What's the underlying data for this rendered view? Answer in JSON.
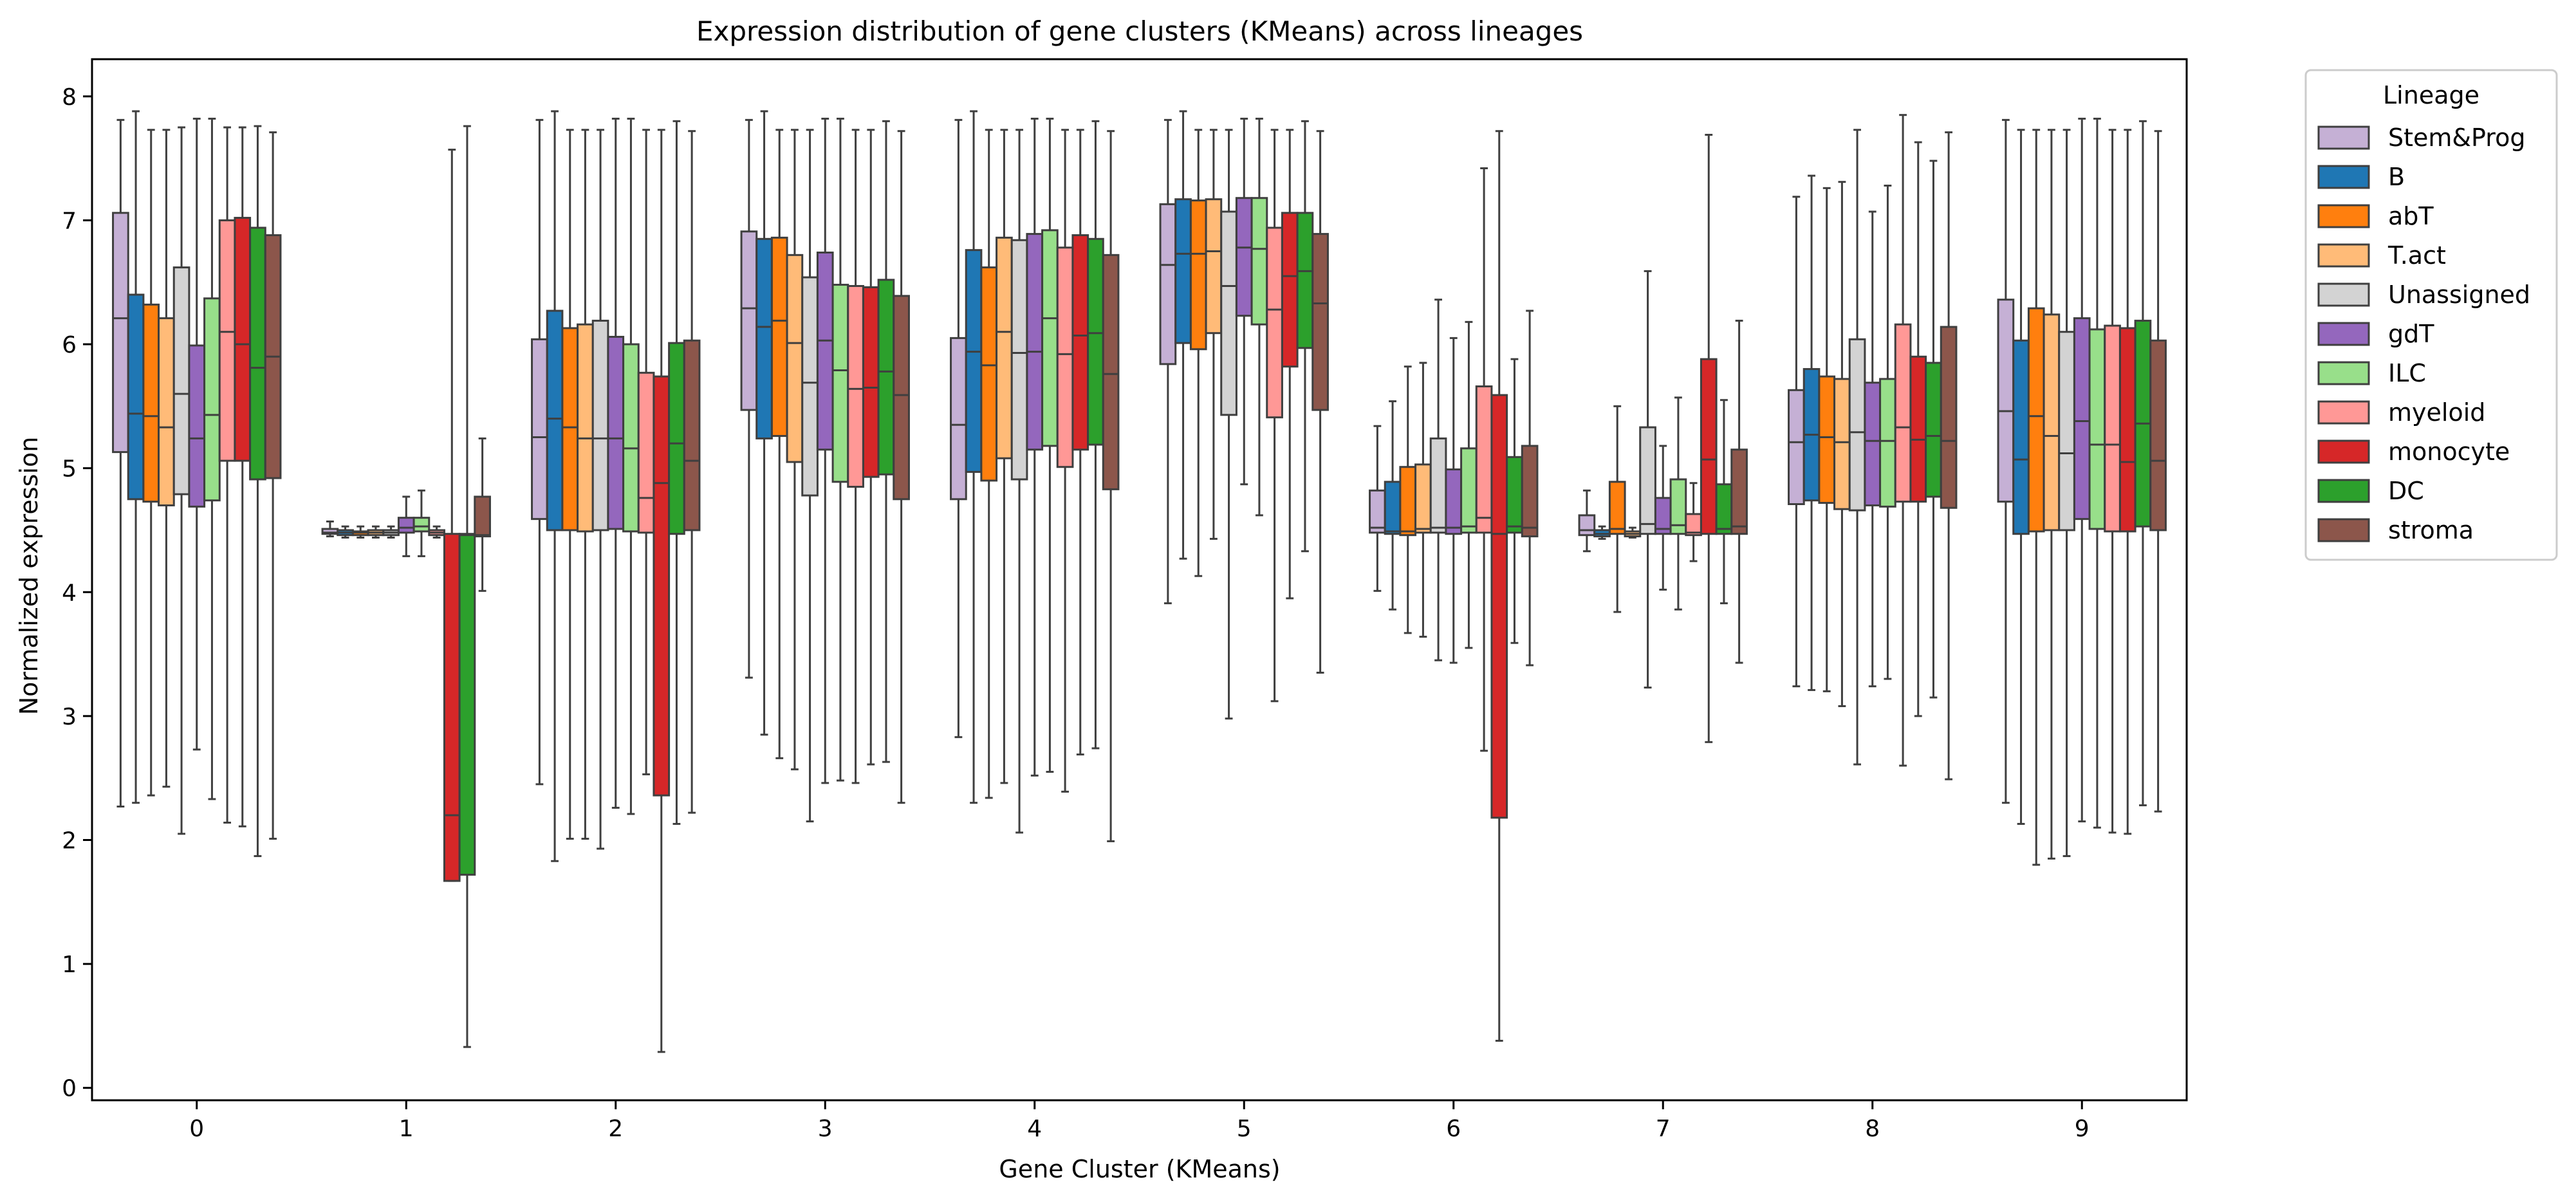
{
  "chart_data": {
    "type": "box",
    "title": "Expression distribution of gene clusters (KMeans) across lineages",
    "xlabel": "Gene Cluster (KMeans)",
    "ylabel": "Normalized expression",
    "ylim": [
      -0.1,
      8.3
    ],
    "yticks": [
      0,
      1,
      2,
      3,
      4,
      5,
      6,
      7,
      8
    ],
    "categories": [
      "0",
      "1",
      "2",
      "3",
      "4",
      "5",
      "6",
      "7",
      "8",
      "9"
    ],
    "grid": false,
    "legend": {
      "title": "Lineage",
      "placement": "outside-upper-right"
    },
    "series": [
      {
        "name": "Stem&Prog",
        "color": "#c5b0d5",
        "boxes": [
          {
            "lo": 2.27,
            "q1": 5.13,
            "med": 6.21,
            "q3": 7.06,
            "hi": 7.81
          },
          {
            "lo": 4.45,
            "q1": 4.47,
            "med": 4.48,
            "q3": 4.51,
            "hi": 4.57
          },
          {
            "lo": 2.45,
            "q1": 4.59,
            "med": 5.25,
            "q3": 6.04,
            "hi": 7.81
          },
          {
            "lo": 3.31,
            "q1": 5.47,
            "med": 6.29,
            "q3": 6.91,
            "hi": 7.81
          },
          {
            "lo": 2.83,
            "q1": 4.75,
            "med": 5.35,
            "q3": 6.05,
            "hi": 7.81
          },
          {
            "lo": 3.91,
            "q1": 5.84,
            "med": 6.64,
            "q3": 7.13,
            "hi": 7.81
          },
          {
            "lo": 4.01,
            "q1": 4.48,
            "med": 4.52,
            "q3": 4.82,
            "hi": 5.34
          },
          {
            "lo": 4.33,
            "q1": 4.46,
            "med": 4.5,
            "q3": 4.62,
            "hi": 4.82
          },
          {
            "lo": 3.24,
            "q1": 4.71,
            "med": 5.21,
            "q3": 5.63,
            "hi": 7.19
          },
          {
            "lo": 2.3,
            "q1": 4.73,
            "med": 5.46,
            "q3": 6.36,
            "hi": 7.81
          }
        ]
      },
      {
        "name": "B",
        "color": "#1f77b4",
        "boxes": [
          {
            "lo": 2.3,
            "q1": 4.75,
            "med": 5.44,
            "q3": 6.4,
            "hi": 7.88
          },
          {
            "lo": 4.44,
            "q1": 4.46,
            "med": 4.48,
            "q3": 4.5,
            "hi": 4.53
          },
          {
            "lo": 1.83,
            "q1": 4.5,
            "med": 5.4,
            "q3": 6.27,
            "hi": 7.88
          },
          {
            "lo": 2.85,
            "q1": 5.24,
            "med": 6.14,
            "q3": 6.85,
            "hi": 7.88
          },
          {
            "lo": 2.3,
            "q1": 4.97,
            "med": 5.94,
            "q3": 6.76,
            "hi": 7.88
          },
          {
            "lo": 4.27,
            "q1": 6.01,
            "med": 6.73,
            "q3": 7.17,
            "hi": 7.88
          },
          {
            "lo": 3.86,
            "q1": 4.47,
            "med": 4.49,
            "q3": 4.89,
            "hi": 5.54
          },
          {
            "lo": 4.43,
            "q1": 4.45,
            "med": 4.47,
            "q3": 4.5,
            "hi": 4.53
          },
          {
            "lo": 3.21,
            "q1": 4.74,
            "med": 5.27,
            "q3": 5.8,
            "hi": 7.36
          },
          {
            "lo": 2.13,
            "q1": 4.47,
            "med": 5.07,
            "q3": 6.03,
            "hi": 7.73
          }
        ]
      },
      {
        "name": "abT",
        "color": "#ff7f0e",
        "boxes": [
          {
            "lo": 2.36,
            "q1": 4.73,
            "med": 5.42,
            "q3": 6.32,
            "hi": 7.73
          },
          {
            "lo": 4.44,
            "q1": 4.46,
            "med": 4.48,
            "q3": 4.49,
            "hi": 4.53
          },
          {
            "lo": 2.01,
            "q1": 4.5,
            "med": 5.33,
            "q3": 6.13,
            "hi": 7.73
          },
          {
            "lo": 2.66,
            "q1": 5.26,
            "med": 6.19,
            "q3": 6.86,
            "hi": 7.73
          },
          {
            "lo": 2.34,
            "q1": 4.9,
            "med": 5.83,
            "q3": 6.62,
            "hi": 7.73
          },
          {
            "lo": 4.13,
            "q1": 5.96,
            "med": 6.73,
            "q3": 7.16,
            "hi": 7.73
          },
          {
            "lo": 3.67,
            "q1": 4.46,
            "med": 4.49,
            "q3": 5.01,
            "hi": 5.82
          },
          {
            "lo": 3.84,
            "q1": 4.47,
            "med": 4.51,
            "q3": 4.89,
            "hi": 5.5
          },
          {
            "lo": 3.2,
            "q1": 4.72,
            "med": 5.25,
            "q3": 5.74,
            "hi": 7.26
          },
          {
            "lo": 1.8,
            "q1": 4.49,
            "med": 5.42,
            "q3": 6.29,
            "hi": 7.73
          }
        ]
      },
      {
        "name": "T.act",
        "color": "#ffbb78",
        "boxes": [
          {
            "lo": 2.43,
            "q1": 4.7,
            "med": 5.33,
            "q3": 6.21,
            "hi": 7.73
          },
          {
            "lo": 4.44,
            "q1": 4.46,
            "med": 4.48,
            "q3": 4.5,
            "hi": 4.53
          },
          {
            "lo": 2.01,
            "q1": 4.49,
            "med": 5.24,
            "q3": 6.16,
            "hi": 7.73
          },
          {
            "lo": 2.57,
            "q1": 5.05,
            "med": 6.01,
            "q3": 6.72,
            "hi": 7.73
          },
          {
            "lo": 2.46,
            "q1": 5.08,
            "med": 6.1,
            "q3": 6.86,
            "hi": 7.73
          },
          {
            "lo": 4.43,
            "q1": 6.09,
            "med": 6.75,
            "q3": 7.17,
            "hi": 7.73
          },
          {
            "lo": 3.64,
            "q1": 4.48,
            "med": 4.51,
            "q3": 5.03,
            "hi": 5.85
          },
          {
            "lo": 4.44,
            "q1": 4.45,
            "med": 4.47,
            "q3": 4.49,
            "hi": 4.52
          },
          {
            "lo": 3.08,
            "q1": 4.67,
            "med": 5.21,
            "q3": 5.72,
            "hi": 7.31
          },
          {
            "lo": 1.85,
            "q1": 4.5,
            "med": 5.26,
            "q3": 6.24,
            "hi": 7.73
          }
        ]
      },
      {
        "name": "Unassigned",
        "color": "#d3d3d3",
        "boxes": [
          {
            "lo": 2.05,
            "q1": 4.79,
            "med": 5.6,
            "q3": 6.62,
            "hi": 7.75
          },
          {
            "lo": 4.44,
            "q1": 4.46,
            "med": 4.48,
            "q3": 4.5,
            "hi": 4.53
          },
          {
            "lo": 1.93,
            "q1": 4.5,
            "med": 5.24,
            "q3": 6.19,
            "hi": 7.73
          },
          {
            "lo": 2.15,
            "q1": 4.78,
            "med": 5.69,
            "q3": 6.54,
            "hi": 7.73
          },
          {
            "lo": 2.06,
            "q1": 4.91,
            "med": 5.93,
            "q3": 6.84,
            "hi": 7.73
          },
          {
            "lo": 2.98,
            "q1": 5.43,
            "med": 6.47,
            "q3": 7.07,
            "hi": 7.73
          },
          {
            "lo": 3.45,
            "q1": 4.48,
            "med": 4.52,
            "q3": 5.24,
            "hi": 6.36
          },
          {
            "lo": 3.23,
            "q1": 4.47,
            "med": 4.55,
            "q3": 5.33,
            "hi": 6.59
          },
          {
            "lo": 2.61,
            "q1": 4.66,
            "med": 5.29,
            "q3": 6.04,
            "hi": 7.73
          },
          {
            "lo": 1.87,
            "q1": 4.5,
            "med": 5.12,
            "q3": 6.1,
            "hi": 7.73
          }
        ]
      },
      {
        "name": "gdT",
        "color": "#9467bd",
        "boxes": [
          {
            "lo": 2.73,
            "q1": 4.69,
            "med": 5.24,
            "q3": 5.99,
            "hi": 7.82
          },
          {
            "lo": 4.29,
            "q1": 4.48,
            "med": 4.52,
            "q3": 4.6,
            "hi": 4.77
          },
          {
            "lo": 2.26,
            "q1": 4.51,
            "med": 5.24,
            "q3": 6.06,
            "hi": 7.82
          },
          {
            "lo": 2.46,
            "q1": 5.15,
            "med": 6.03,
            "q3": 6.74,
            "hi": 7.82
          },
          {
            "lo": 2.52,
            "q1": 5.15,
            "med": 5.94,
            "q3": 6.89,
            "hi": 7.82
          },
          {
            "lo": 4.87,
            "q1": 6.23,
            "med": 6.78,
            "q3": 7.18,
            "hi": 7.82
          },
          {
            "lo": 3.43,
            "q1": 4.47,
            "med": 4.52,
            "q3": 4.99,
            "hi": 6.05
          },
          {
            "lo": 4.02,
            "q1": 4.47,
            "med": 4.51,
            "q3": 4.76,
            "hi": 5.18
          },
          {
            "lo": 3.24,
            "q1": 4.7,
            "med": 5.22,
            "q3": 5.69,
            "hi": 7.07
          },
          {
            "lo": 2.15,
            "q1": 4.59,
            "med": 5.38,
            "q3": 6.21,
            "hi": 7.82
          }
        ]
      },
      {
        "name": "ILC",
        "color": "#98df8a",
        "boxes": [
          {
            "lo": 2.33,
            "q1": 4.74,
            "med": 5.43,
            "q3": 6.37,
            "hi": 7.82
          },
          {
            "lo": 4.29,
            "q1": 4.49,
            "med": 4.53,
            "q3": 4.6,
            "hi": 4.82
          },
          {
            "lo": 2.21,
            "q1": 4.49,
            "med": 5.16,
            "q3": 6.0,
            "hi": 7.82
          },
          {
            "lo": 2.48,
            "q1": 4.89,
            "med": 5.79,
            "q3": 6.48,
            "hi": 7.82
          },
          {
            "lo": 2.55,
            "q1": 5.18,
            "med": 6.21,
            "q3": 6.92,
            "hi": 7.82
          },
          {
            "lo": 4.62,
            "q1": 6.16,
            "med": 6.77,
            "q3": 7.18,
            "hi": 7.82
          },
          {
            "lo": 3.55,
            "q1": 4.48,
            "med": 4.53,
            "q3": 5.16,
            "hi": 6.18
          },
          {
            "lo": 3.86,
            "q1": 4.47,
            "med": 4.54,
            "q3": 4.91,
            "hi": 5.57
          },
          {
            "lo": 3.3,
            "q1": 4.69,
            "med": 5.22,
            "q3": 5.72,
            "hi": 7.28
          },
          {
            "lo": 2.1,
            "q1": 4.51,
            "med": 5.19,
            "q3": 6.12,
            "hi": 7.82
          }
        ]
      },
      {
        "name": "myeloid",
        "color": "#ff9896",
        "boxes": [
          {
            "lo": 2.14,
            "q1": 5.06,
            "med": 6.1,
            "q3": 7.0,
            "hi": 7.75
          },
          {
            "lo": 4.44,
            "q1": 4.46,
            "med": 4.48,
            "q3": 4.5,
            "hi": 4.53
          },
          {
            "lo": 2.53,
            "q1": 4.48,
            "med": 4.76,
            "q3": 5.77,
            "hi": 7.73
          },
          {
            "lo": 2.46,
            "q1": 4.85,
            "med": 5.64,
            "q3": 6.47,
            "hi": 7.73
          },
          {
            "lo": 2.39,
            "q1": 5.01,
            "med": 5.92,
            "q3": 6.78,
            "hi": 7.73
          },
          {
            "lo": 3.12,
            "q1": 5.41,
            "med": 6.28,
            "q3": 6.94,
            "hi": 7.73
          },
          {
            "lo": 2.72,
            "q1": 4.48,
            "med": 4.6,
            "q3": 5.66,
            "hi": 7.42
          },
          {
            "lo": 4.25,
            "q1": 4.46,
            "med": 4.48,
            "q3": 4.63,
            "hi": 4.88
          },
          {
            "lo": 2.6,
            "q1": 4.73,
            "med": 5.33,
            "q3": 6.16,
            "hi": 7.85
          },
          {
            "lo": 2.06,
            "q1": 4.49,
            "med": 5.19,
            "q3": 6.15,
            "hi": 7.73
          }
        ]
      },
      {
        "name": "monocyte",
        "color": "#d62728",
        "boxes": [
          {
            "lo": 2.11,
            "q1": 5.06,
            "med": 6.0,
            "q3": 7.02,
            "hi": 7.75
          },
          {
            "lo": 1.67,
            "q1": 1.67,
            "med": 2.2,
            "q3": 4.47,
            "hi": 7.57
          },
          {
            "lo": 0.29,
            "q1": 2.36,
            "med": 4.88,
            "q3": 5.74,
            "hi": 7.73
          },
          {
            "lo": 2.61,
            "q1": 4.93,
            "med": 5.65,
            "q3": 6.46,
            "hi": 7.73
          },
          {
            "lo": 2.69,
            "q1": 5.15,
            "med": 6.07,
            "q3": 6.88,
            "hi": 7.73
          },
          {
            "lo": 3.95,
            "q1": 5.82,
            "med": 6.55,
            "q3": 7.06,
            "hi": 7.73
          },
          {
            "lo": 0.38,
            "q1": 2.18,
            "med": 4.47,
            "q3": 5.59,
            "hi": 7.72
          },
          {
            "lo": 2.79,
            "q1": 4.47,
            "med": 5.07,
            "q3": 5.88,
            "hi": 7.69
          },
          {
            "lo": 3.0,
            "q1": 4.73,
            "med": 5.23,
            "q3": 5.9,
            "hi": 7.63
          },
          {
            "lo": 2.05,
            "q1": 4.49,
            "med": 5.05,
            "q3": 6.13,
            "hi": 7.73
          }
        ]
      },
      {
        "name": "DC",
        "color": "#2ca02c",
        "boxes": [
          {
            "lo": 1.87,
            "q1": 4.91,
            "med": 5.81,
            "q3": 6.94,
            "hi": 7.76
          },
          {
            "lo": 0.33,
            "q1": 1.72,
            "med": 4.46,
            "q3": 4.47,
            "hi": 7.76
          },
          {
            "lo": 2.13,
            "q1": 4.47,
            "med": 5.2,
            "q3": 6.01,
            "hi": 7.8
          },
          {
            "lo": 2.63,
            "q1": 4.95,
            "med": 5.78,
            "q3": 6.52,
            "hi": 7.8
          },
          {
            "lo": 2.74,
            "q1": 5.19,
            "med": 6.09,
            "q3": 6.85,
            "hi": 7.8
          },
          {
            "lo": 4.33,
            "q1": 5.97,
            "med": 6.59,
            "q3": 7.06,
            "hi": 7.8
          },
          {
            "lo": 3.59,
            "q1": 4.48,
            "med": 4.53,
            "q3": 5.09,
            "hi": 5.88
          },
          {
            "lo": 3.91,
            "q1": 4.47,
            "med": 4.51,
            "q3": 4.87,
            "hi": 5.55
          },
          {
            "lo": 3.15,
            "q1": 4.77,
            "med": 5.26,
            "q3": 5.85,
            "hi": 7.48
          },
          {
            "lo": 2.28,
            "q1": 4.53,
            "med": 5.36,
            "q3": 6.19,
            "hi": 7.8
          }
        ]
      },
      {
        "name": "stroma",
        "color": "#8c564b",
        "boxes": [
          {
            "lo": 2.01,
            "q1": 4.92,
            "med": 5.9,
            "q3": 6.88,
            "hi": 7.71
          },
          {
            "lo": 4.01,
            "q1": 4.45,
            "med": 4.46,
            "q3": 4.77,
            "hi": 5.24
          },
          {
            "lo": 2.22,
            "q1": 4.5,
            "med": 5.06,
            "q3": 6.03,
            "hi": 7.72
          },
          {
            "lo": 2.3,
            "q1": 4.75,
            "med": 5.59,
            "q3": 6.39,
            "hi": 7.72
          },
          {
            "lo": 1.99,
            "q1": 4.83,
            "med": 5.76,
            "q3": 6.72,
            "hi": 7.72
          },
          {
            "lo": 3.35,
            "q1": 5.47,
            "med": 6.33,
            "q3": 6.89,
            "hi": 7.72
          },
          {
            "lo": 3.41,
            "q1": 4.45,
            "med": 4.52,
            "q3": 5.18,
            "hi": 6.27
          },
          {
            "lo": 3.43,
            "q1": 4.47,
            "med": 4.53,
            "q3": 5.15,
            "hi": 6.19
          },
          {
            "lo": 2.49,
            "q1": 4.68,
            "med": 5.22,
            "q3": 6.14,
            "hi": 7.71
          },
          {
            "lo": 2.23,
            "q1": 4.5,
            "med": 5.06,
            "q3": 6.03,
            "hi": 7.72
          }
        ]
      }
    ]
  }
}
